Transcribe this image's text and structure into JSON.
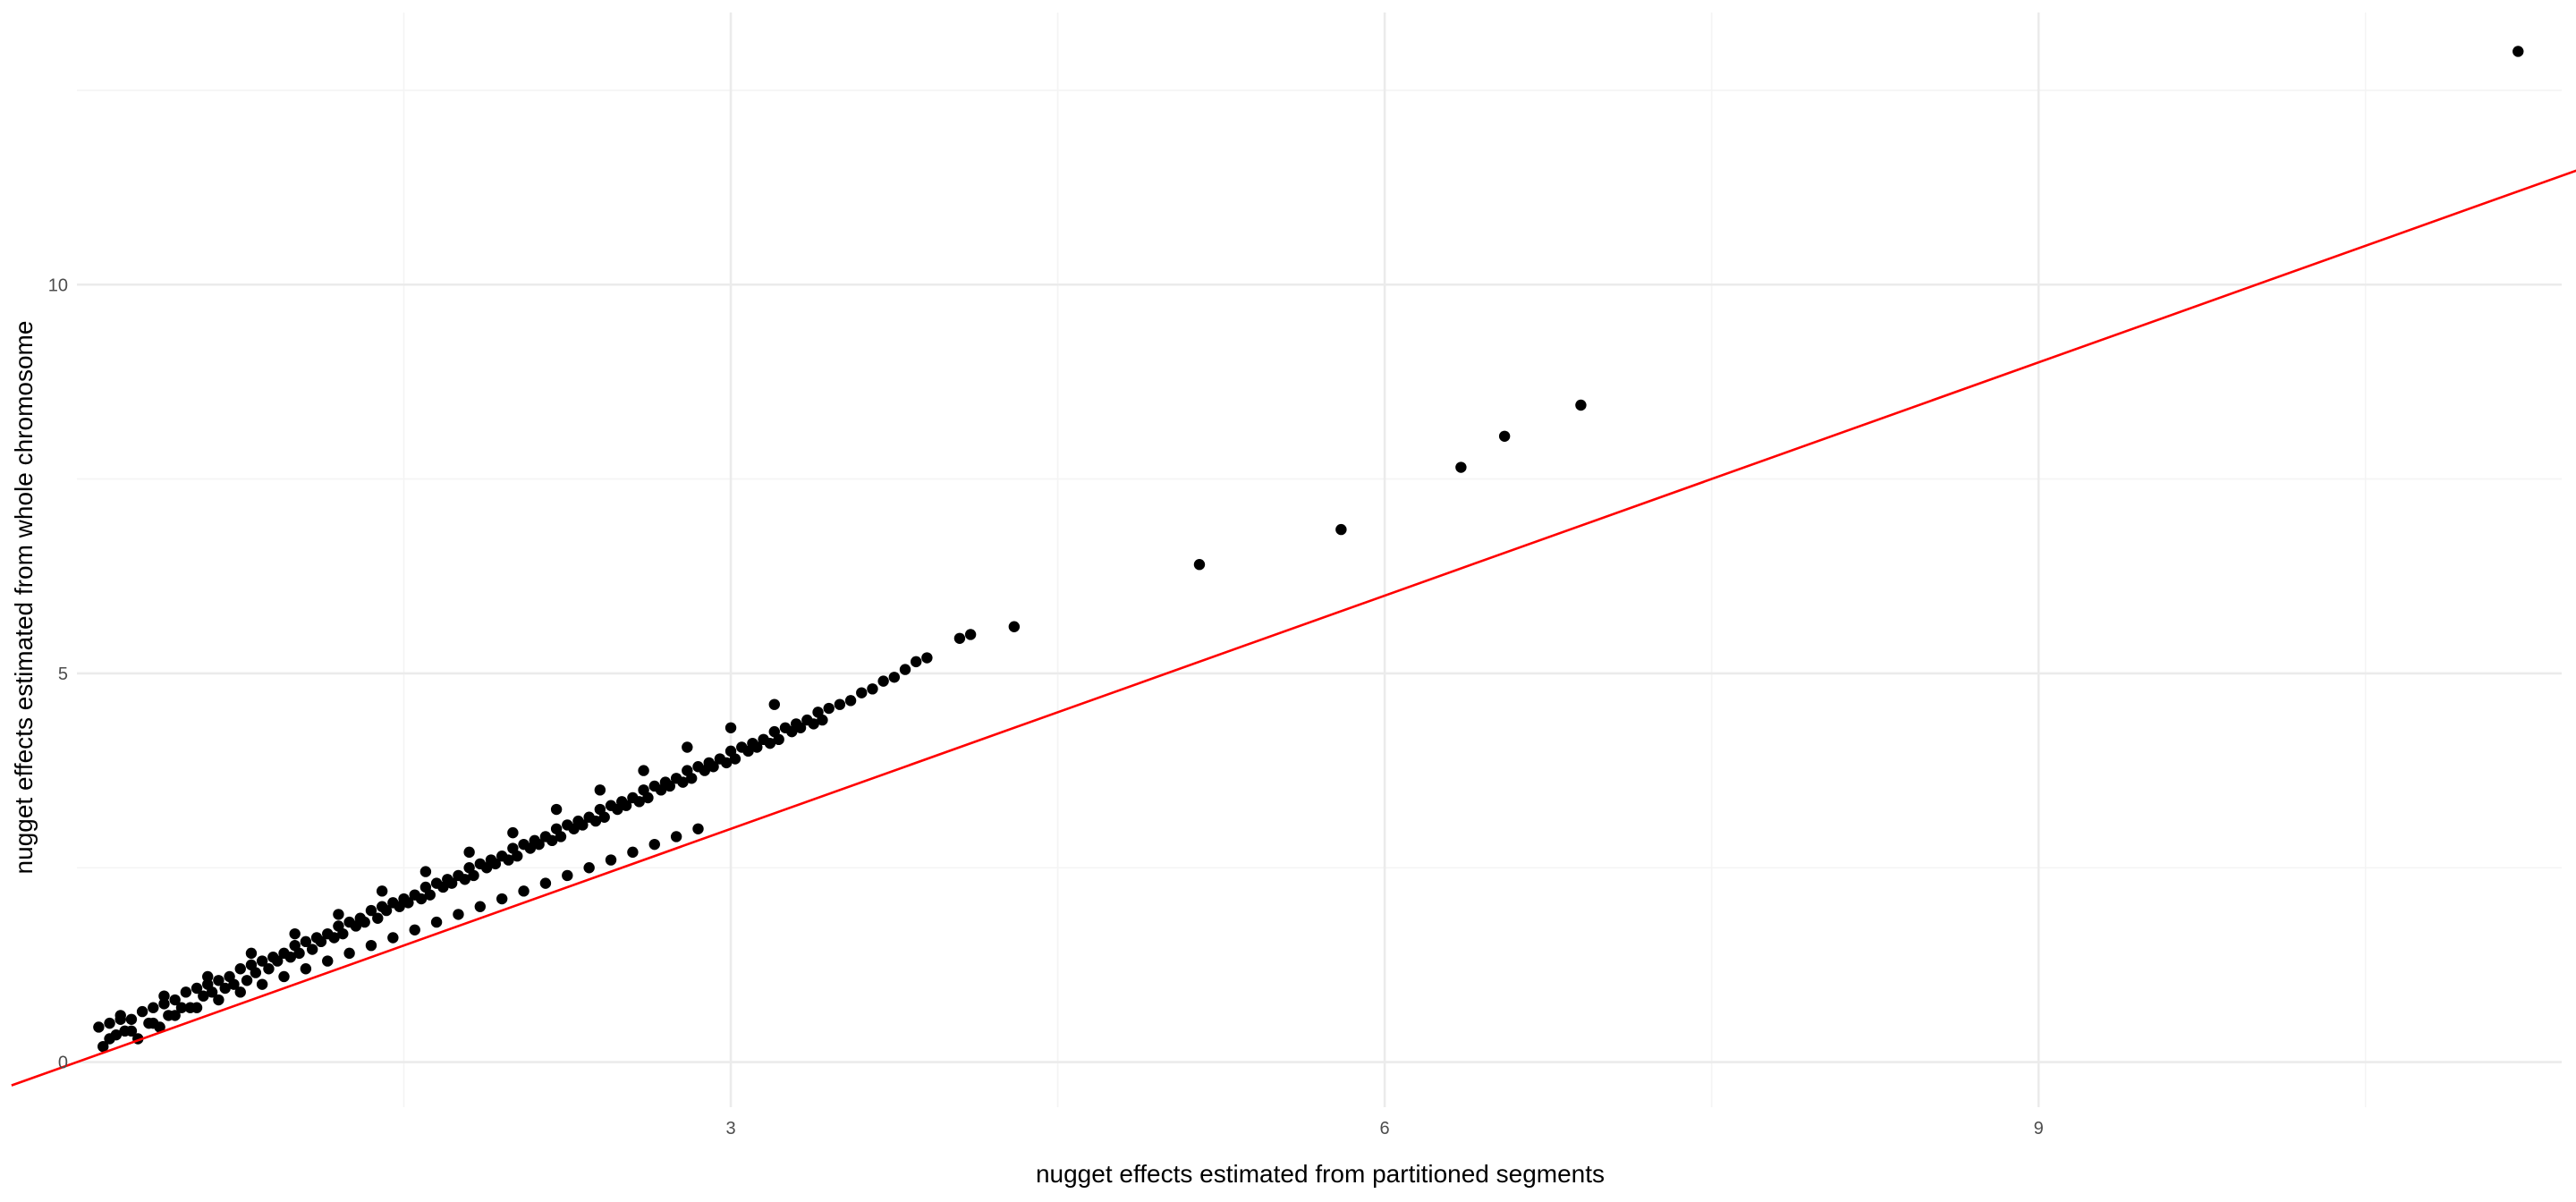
{
  "chart_data": {
    "type": "scatter",
    "title": "",
    "xlabel": "nugget effects estimated from partitioned segments",
    "ylabel": "nugget effects estimated from whole chromosome",
    "xlim": [
      0.0,
      11.4
    ],
    "ylim": [
      -0.58,
      13.5
    ],
    "x_ticks": [
      3,
      6,
      9
    ],
    "y_ticks": [
      0,
      5,
      10
    ],
    "x_minor_ticks": [
      1.5,
      4.5,
      7.5,
      10.5
    ],
    "y_minor_ticks": [
      2.5,
      7.5,
      12.5
    ],
    "grid": true,
    "legend": "none",
    "point_color": "#000000",
    "reference_line": {
      "type": "identity",
      "slope": 1,
      "intercept": 0,
      "color": "#ff0000",
      "x_range": [
        -0.3,
        11.6
      ]
    },
    "points": {
      "x": [
        0.1,
        0.12,
        0.15,
        0.18,
        0.2,
        0.22,
        0.25,
        0.28,
        0.3,
        0.33,
        0.35,
        0.38,
        0.4,
        0.42,
        0.45,
        0.48,
        0.5,
        0.52,
        0.55,
        0.58,
        0.6,
        0.62,
        0.65,
        0.68,
        0.7,
        0.72,
        0.75,
        0.78,
        0.8,
        0.82,
        0.85,
        0.88,
        0.9,
        0.92,
        0.95,
        0.98,
        1.0,
        1.02,
        1.05,
        1.08,
        1.1,
        1.12,
        1.15,
        1.18,
        1.2,
        1.22,
        1.25,
        1.28,
        1.3,
        1.32,
        1.35,
        1.38,
        1.4,
        1.42,
        1.45,
        1.48,
        1.5,
        1.52,
        1.55,
        1.58,
        1.6,
        1.62,
        1.65,
        1.68,
        1.7,
        1.72,
        1.75,
        1.78,
        1.8,
        1.82,
        1.85,
        1.88,
        1.9,
        1.92,
        1.95,
        1.98,
        2.0,
        2.02,
        2.05,
        2.08,
        2.1,
        2.12,
        2.15,
        2.18,
        2.2,
        2.22,
        2.25,
        2.28,
        2.3,
        2.32,
        2.35,
        2.38,
        2.4,
        2.42,
        2.45,
        2.48,
        2.5,
        2.52,
        2.55,
        2.58,
        2.6,
        2.62,
        2.65,
        2.68,
        2.7,
        2.72,
        2.75,
        2.78,
        2.8,
        2.82,
        2.85,
        2.88,
        2.9,
        2.92,
        2.95,
        2.98,
        3.0,
        3.02,
        3.05,
        3.08,
        3.1,
        3.12,
        3.15,
        3.18,
        3.2,
        3.22,
        3.25,
        3.28,
        3.3,
        3.32,
        3.35,
        3.38,
        3.4,
        3.42,
        3.45,
        3.5,
        3.55,
        3.6,
        3.65,
        3.7,
        3.75,
        3.8,
        3.85,
        3.9,
        4.05,
        4.1,
        4.3,
        5.15,
        5.8,
        6.35,
        6.55,
        6.9,
        11.2,
        0.15,
        0.25,
        0.35,
        0.45,
        0.55,
        0.65,
        0.75,
        0.85,
        0.95,
        1.05,
        1.15,
        1.25,
        1.35,
        1.45,
        1.55,
        1.65,
        1.75,
        1.85,
        1.95,
        2.05,
        2.15,
        2.25,
        2.35,
        2.45,
        2.55,
        2.65,
        2.75,
        2.85,
        0.2,
        0.4,
        0.6,
        0.8,
        1.0,
        1.2,
        1.4,
        1.6,
        1.8,
        2.0,
        2.2,
        2.4,
        2.6,
        2.8,
        3.0,
        3.2
      ],
      "y": [
        0.45,
        0.2,
        0.5,
        0.35,
        0.6,
        0.4,
        0.55,
        0.3,
        0.65,
        0.5,
        0.7,
        0.45,
        0.75,
        0.6,
        0.8,
        0.7,
        0.9,
        0.7,
        0.95,
        0.85,
        1.0,
        0.9,
        1.05,
        0.95,
        1.1,
        1.0,
        1.2,
        1.05,
        1.25,
        1.15,
        1.3,
        1.2,
        1.35,
        1.3,
        1.4,
        1.35,
        1.5,
        1.4,
        1.55,
        1.45,
        1.6,
        1.55,
        1.65,
        1.6,
        1.75,
        1.65,
        1.8,
        1.75,
        1.85,
        1.8,
        1.95,
        1.85,
        2.0,
        1.95,
        2.05,
        2.0,
        2.1,
        2.05,
        2.15,
        2.1,
        2.25,
        2.15,
        2.3,
        2.25,
        2.35,
        2.3,
        2.4,
        2.35,
        2.5,
        2.4,
        2.55,
        2.5,
        2.6,
        2.55,
        2.65,
        2.6,
        2.75,
        2.65,
        2.8,
        2.75,
        2.85,
        2.8,
        2.9,
        2.85,
        3.0,
        2.9,
        3.05,
        3.0,
        3.1,
        3.05,
        3.15,
        3.1,
        3.25,
        3.15,
        3.3,
        3.25,
        3.35,
        3.3,
        3.4,
        3.35,
        3.5,
        3.4,
        3.55,
        3.5,
        3.6,
        3.55,
        3.65,
        3.6,
        3.75,
        3.65,
        3.8,
        3.75,
        3.85,
        3.8,
        3.9,
        3.85,
        4.0,
        3.9,
        4.05,
        4.0,
        4.1,
        4.05,
        4.15,
        4.1,
        4.25,
        4.15,
        4.3,
        4.25,
        4.35,
        4.3,
        4.4,
        4.35,
        4.5,
        4.4,
        4.55,
        4.6,
        4.65,
        4.75,
        4.8,
        4.9,
        4.95,
        5.05,
        5.15,
        5.2,
        5.45,
        5.5,
        5.6,
        6.4,
        6.85,
        7.65,
        8.05,
        8.45,
        13.0,
        0.3,
        0.4,
        0.5,
        0.6,
        0.7,
        0.8,
        0.9,
        1.0,
        1.1,
        1.2,
        1.3,
        1.4,
        1.5,
        1.6,
        1.7,
        1.8,
        1.9,
        2.0,
        2.1,
        2.2,
        2.3,
        2.4,
        2.5,
        2.6,
        2.7,
        2.8,
        2.9,
        3.0,
        0.55,
        0.85,
        1.1,
        1.4,
        1.65,
        1.9,
        2.2,
        2.45,
        2.7,
        2.95,
        3.25,
        3.5,
        3.75,
        4.05,
        4.3,
        4.6
      ]
    }
  }
}
